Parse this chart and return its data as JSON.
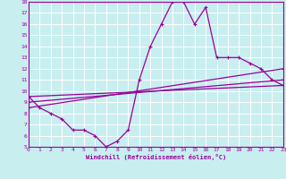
{
  "bg_color": "#c8eef0",
  "line_color": "#990099",
  "grid_color": "#ffffff",
  "xlabel": "Windchill (Refroidissement éolien,°C)",
  "xlim": [
    0,
    23
  ],
  "ylim": [
    5,
    18
  ],
  "xticks": [
    0,
    1,
    2,
    3,
    4,
    5,
    6,
    7,
    8,
    9,
    10,
    11,
    12,
    13,
    14,
    15,
    16,
    17,
    18,
    19,
    20,
    21,
    22,
    23
  ],
  "yticks": [
    5,
    6,
    7,
    8,
    9,
    10,
    11,
    12,
    13,
    14,
    15,
    16,
    17,
    18
  ],
  "series": [
    {
      "x": [
        0,
        1,
        2,
        3,
        4,
        5,
        6,
        7,
        8,
        9,
        10,
        11,
        12,
        13,
        14,
        15,
        16,
        17,
        18,
        19,
        20,
        21,
        22,
        23
      ],
      "y": [
        9.5,
        8.5,
        8,
        7.5,
        6.5,
        6.5,
        6,
        5,
        5.5,
        6.5,
        11,
        14,
        16,
        18,
        18,
        16,
        17.5,
        13,
        13,
        13,
        12.5,
        12,
        11,
        10.5
      ]
    },
    {
      "x": [
        0,
        23
      ],
      "y": [
        9.5,
        10.5
      ]
    },
    {
      "x": [
        0,
        23
      ],
      "y": [
        9.0,
        11.0
      ]
    },
    {
      "x": [
        0,
        23
      ],
      "y": [
        8.5,
        12.0
      ]
    }
  ]
}
